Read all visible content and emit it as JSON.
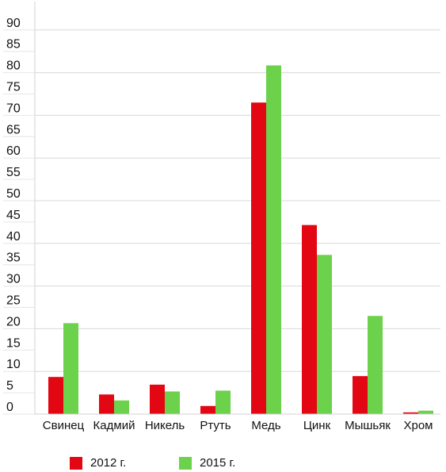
{
  "chart_data": {
    "type": "bar",
    "title": "",
    "xlabel": "",
    "ylabel": "",
    "ylim": [
      0,
      93
    ],
    "yticks": [
      0,
      5,
      10,
      15,
      20,
      25,
      30,
      35,
      40,
      45,
      50,
      55,
      60,
      65,
      70,
      75,
      80,
      85,
      90
    ],
    "grid": true,
    "legend_position": "bottom",
    "categories": [
      "Свинец",
      "Кадмий",
      "Никель",
      "Ртуть",
      "Медь",
      "Цинк",
      "Мышьяк",
      "Хром"
    ],
    "series": [
      {
        "name": "2012 г.",
        "color": "#e30613",
        "values": [
          8.7,
          4.6,
          6.9,
          1.9,
          73.0,
          44.3,
          8.9,
          0.4
        ]
      },
      {
        "name": "2015 г.",
        "color": "#6cd14b",
        "values": [
          21.3,
          3.2,
          5.3,
          5.5,
          81.7,
          37.3,
          23.0,
          0.8
        ]
      }
    ]
  }
}
